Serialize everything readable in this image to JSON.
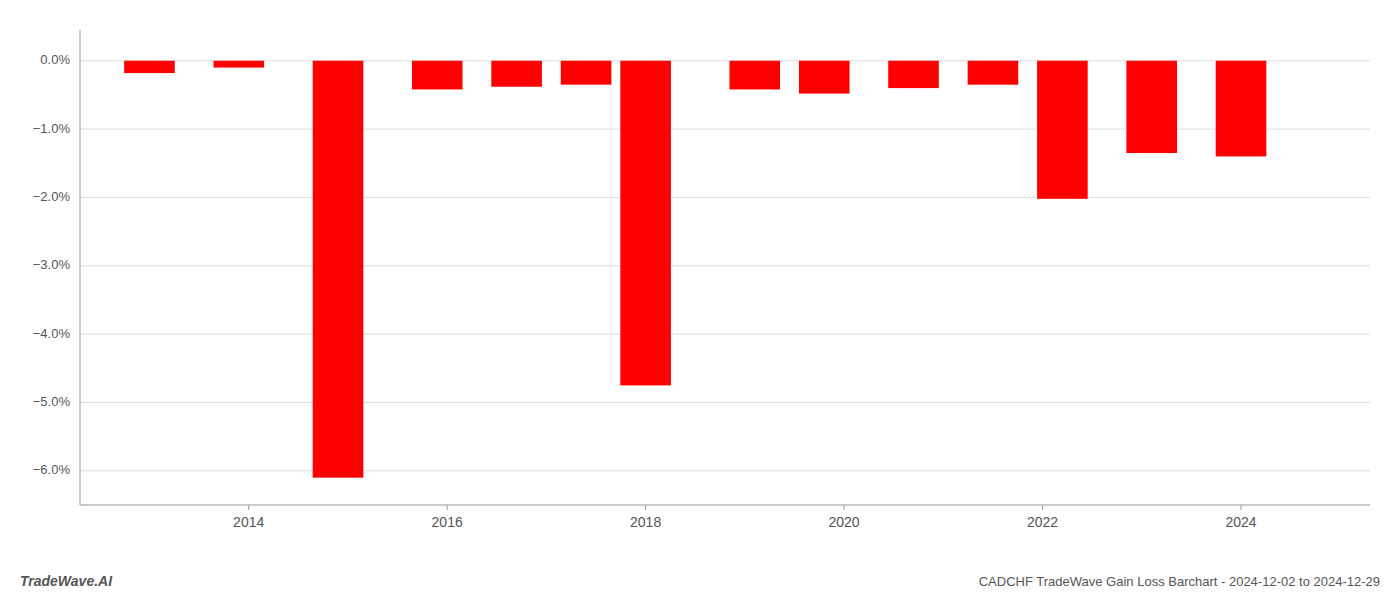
{
  "chart_data": {
    "type": "bar",
    "title": "CADCHF TradeWave Gain Loss Barchart - 2024-12-02 to 2024-12-29",
    "annotations": [
      "TradeWave.AI"
    ],
    "x": [
      2013.0,
      2013.9,
      2014.9,
      2015.9,
      2016.7,
      2017.4,
      2018.0,
      2019.1,
      2019.8,
      2020.7,
      2021.5,
      2022.2,
      2023.1,
      2024.0
    ],
    "values": [
      -0.18,
      -0.1,
      -6.1,
      -0.42,
      -0.38,
      -0.35,
      -4.75,
      -0.42,
      -0.48,
      -0.4,
      -0.35,
      -2.02,
      -1.35,
      -1.4
    ],
    "color": "#ff0000",
    "xlim": [
      2012.3,
      2025.3
    ],
    "xticks": [
      2014,
      2016,
      2018,
      2020,
      2022,
      2024
    ],
    "ylim": [
      -6.5,
      0.45
    ],
    "yticks": [
      {
        "value": 0.0,
        "label": "0.0%"
      },
      {
        "value": -1.0,
        "label": "−1.0%"
      },
      {
        "value": -2.0,
        "label": "−2.0%"
      },
      {
        "value": -3.0,
        "label": "−3.0%"
      },
      {
        "value": -4.0,
        "label": "−4.0%"
      },
      {
        "value": -5.0,
        "label": "−5.0%"
      },
      {
        "value": -6.0,
        "label": "−6.0%"
      }
    ],
    "grid": true
  }
}
